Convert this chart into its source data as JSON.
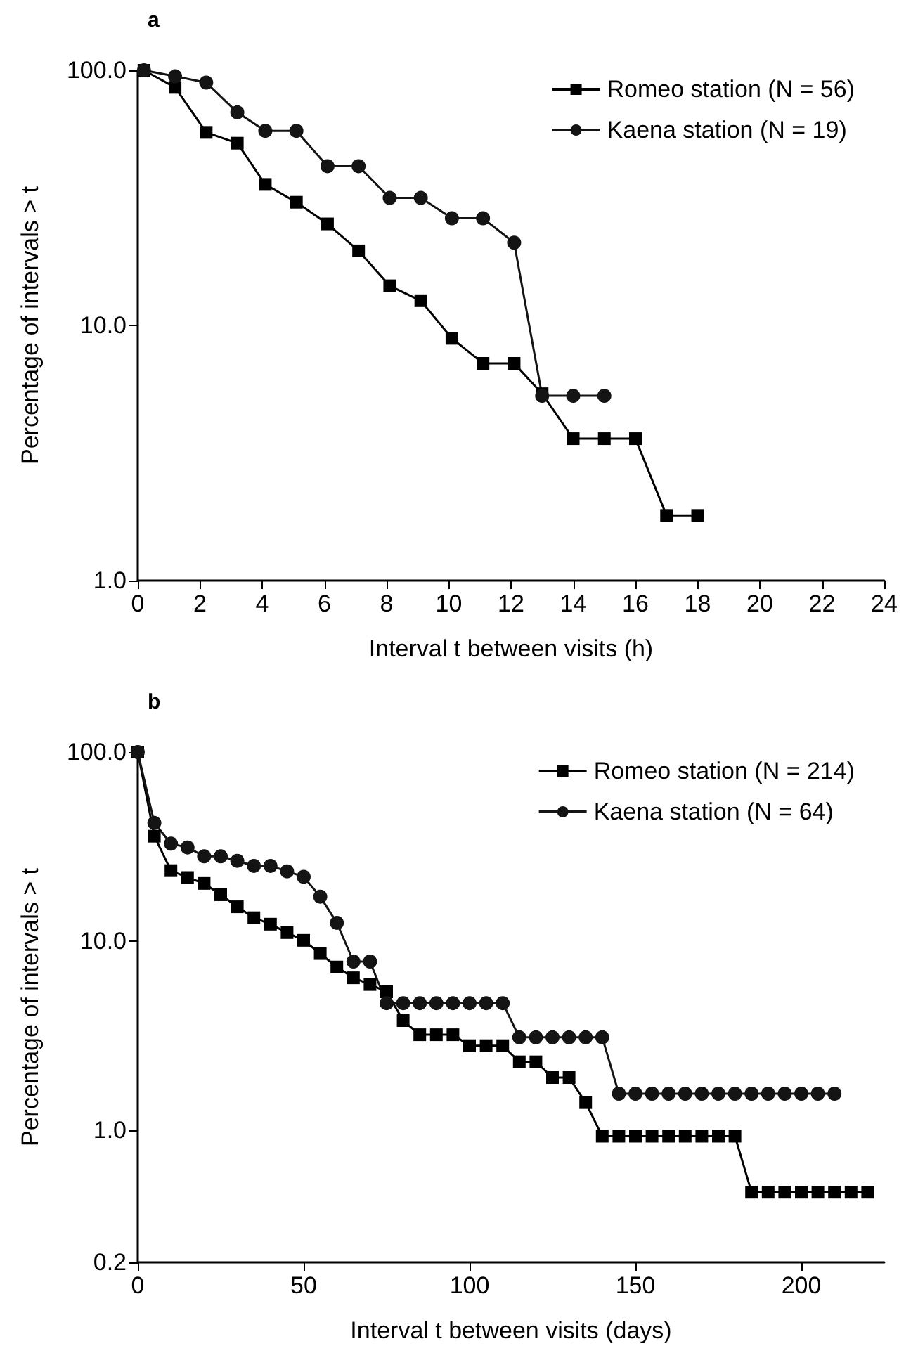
{
  "chart_data": [
    {
      "type": "line",
      "title": "a",
      "xlabel": "Interval t between visits (h)",
      "ylabel": "Percentage of intervals > t",
      "log": "y",
      "grid": false,
      "legend": "top right",
      "line_style": "solid",
      "xlim": [
        0,
        24
      ],
      "xticks": [
        0,
        2,
        4,
        6,
        8,
        10,
        12,
        14,
        16,
        18,
        20,
        22,
        24
      ],
      "ylim": [
        1,
        100
      ],
      "yticks": [
        {
          "value": 1,
          "label": "1.0"
        },
        {
          "value": 10,
          "label": "10.0"
        },
        {
          "value": 100,
          "label": "100.0"
        }
      ],
      "series": [
        {
          "name": "Romeo station (N = 56)",
          "color": "#000000",
          "marker": "square",
          "x": [
            0.2,
            1.2,
            2.2,
            3.2,
            4.1,
            5.1,
            6.1,
            7.1,
            8.1,
            9.1,
            10.1,
            11.1,
            12.1,
            13,
            14,
            15,
            16,
            17,
            18
          ],
          "values": [
            100,
            85.7,
            57.1,
            51.8,
            35.7,
            30.4,
            25,
            19.6,
            14.3,
            12.5,
            8.9,
            7.1,
            7.1,
            5.4,
            3.6,
            3.6,
            3.6,
            1.8,
            1.8
          ]
        },
        {
          "name": "Kaena station (N = 19)",
          "color": "#141414",
          "marker": "circle",
          "x": [
            0.2,
            1.2,
            2.2,
            3.2,
            4.1,
            5.1,
            6.1,
            7.1,
            8.1,
            9.1,
            10.1,
            11.1,
            12.1,
            13,
            14,
            15
          ],
          "values": [
            100,
            94.7,
            89.5,
            68.4,
            57.9,
            57.9,
            42.1,
            42.1,
            31.6,
            31.6,
            26.3,
            26.3,
            21.1,
            5.3,
            5.3,
            5.3
          ]
        }
      ]
    },
    {
      "type": "line",
      "title": "b",
      "xlabel": "Interval t between visits (days)",
      "ylabel": "Percentage of intervals > t",
      "log": "y",
      "grid": false,
      "legend": "top right",
      "line_style": "solid",
      "xlim": [
        0,
        225
      ],
      "xticks": [
        0,
        50,
        100,
        150,
        200
      ],
      "ylim": [
        0.2,
        100
      ],
      "yticks": [
        0.2,
        {
          "value": 1,
          "label": "1.0"
        },
        {
          "value": 10,
          "label": "10.0"
        },
        {
          "value": 100,
          "label": "100.0"
        }
      ],
      "series": [
        {
          "name": "Romeo station (N = 214)",
          "color": "#000000",
          "marker": "square",
          "x": [
            0,
            5,
            10,
            15,
            20,
            25,
            30,
            35,
            40,
            45,
            50,
            55,
            60,
            65,
            70,
            75,
            80,
            85,
            90,
            95,
            100,
            105,
            110,
            115,
            120,
            125,
            130,
            135,
            140,
            145,
            150,
            155,
            160,
            165,
            170,
            175,
            180,
            185,
            190,
            195,
            200,
            205,
            210,
            215,
            220
          ],
          "values": [
            100,
            35.9,
            23.6,
            21.7,
            20.2,
            17.6,
            15.2,
            13.3,
            12.3,
            11.1,
            10.1,
            8.6,
            7.3,
            6.4,
            5.9,
            5.4,
            3.8,
            3.2,
            3.2,
            3.2,
            2.8,
            2.8,
            2.8,
            2.3,
            2.3,
            1.9,
            1.9,
            1.4,
            0.93,
            0.93,
            0.93,
            0.93,
            0.93,
            0.93,
            0.93,
            0.93,
            0.93,
            0.47,
            0.47,
            0.47,
            0.47,
            0.47,
            0.47,
            0.47,
            0.47
          ]
        },
        {
          "name": "Kaena station (N = 64)",
          "color": "#141414",
          "marker": "circle",
          "x": [
            0,
            5,
            10,
            15,
            20,
            25,
            30,
            35,
            40,
            45,
            50,
            55,
            60,
            65,
            70,
            75,
            80,
            85,
            90,
            95,
            100,
            105,
            110,
            115,
            120,
            125,
            130,
            135,
            140,
            145,
            150,
            155,
            160,
            165,
            170,
            175,
            180,
            185,
            190,
            195,
            200,
            205,
            210
          ],
          "values": [
            100,
            42.2,
            32.8,
            31.3,
            28.1,
            28.1,
            26.6,
            25,
            25,
            23.4,
            21.9,
            17.2,
            12.5,
            7.8,
            7.8,
            4.7,
            4.7,
            4.7,
            4.7,
            4.7,
            4.7,
            4.7,
            4.7,
            3.1,
            3.1,
            3.1,
            3.1,
            3.1,
            3.1,
            1.56,
            1.56,
            1.56,
            1.56,
            1.56,
            1.56,
            1.56,
            1.56,
            1.56,
            1.56,
            1.56,
            1.56,
            1.56,
            1.56
          ]
        }
      ]
    }
  ]
}
